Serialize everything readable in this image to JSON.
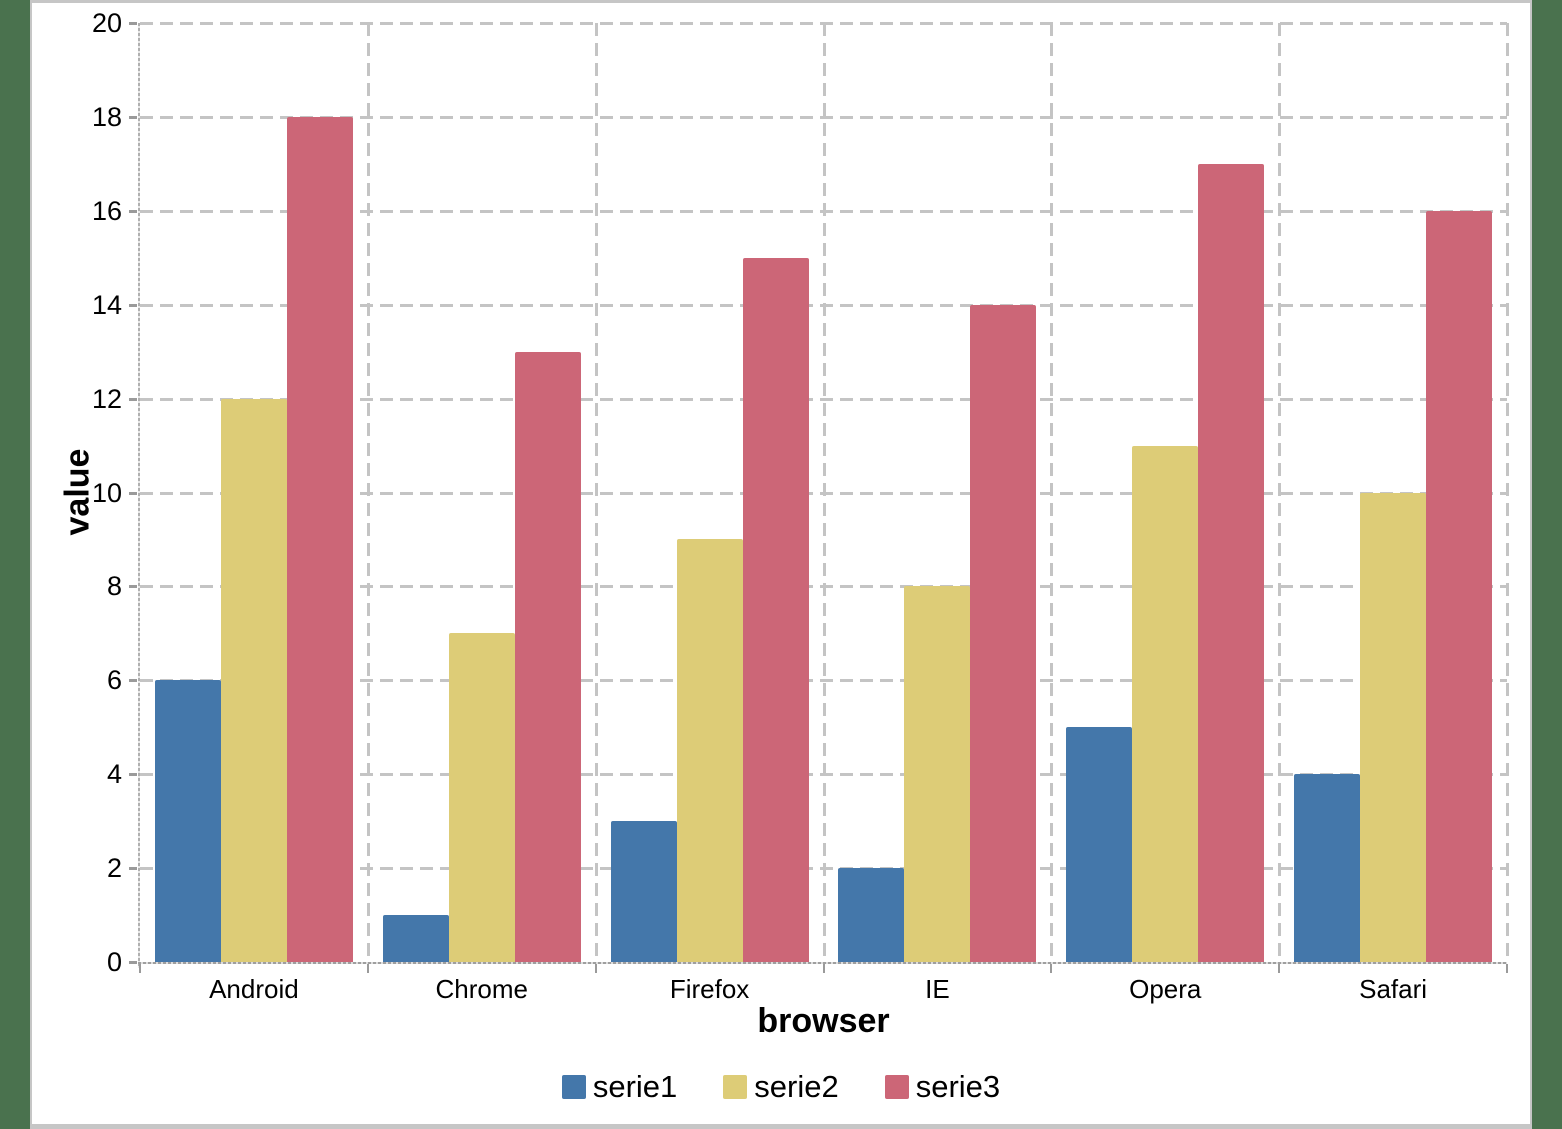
{
  "window": {
    "background_color": "#4a724e",
    "panel_background": "#ffffff",
    "panel_border_color": "#c6c6c6",
    "gridline_color": "#c4c4c4",
    "axis_color": "#9a9a9a",
    "text_color": "#000000"
  },
  "chart_data": {
    "type": "bar",
    "title": "",
    "xlabel": "browser",
    "ylabel": "value",
    "categories": [
      "Android",
      "Chrome",
      "Firefox",
      "IE",
      "Opera",
      "Safari"
    ],
    "series": [
      {
        "name": "serie1",
        "color": "#4477AA",
        "values": [
          6,
          1,
          3,
          2,
          5,
          4
        ]
      },
      {
        "name": "serie2",
        "color": "#DDCC77",
        "values": [
          12,
          7,
          9,
          8,
          11,
          10
        ]
      },
      {
        "name": "serie3",
        "color": "#CC6677",
        "values": [
          18,
          13,
          15,
          14,
          17,
          16
        ]
      }
    ],
    "ylim": [
      0,
      20
    ],
    "ytick_step": 2,
    "yticks": [
      "0",
      "2",
      "4",
      "6",
      "8",
      "10",
      "12",
      "14",
      "16",
      "18",
      "20"
    ],
    "grid": true,
    "grid_style": "dashed",
    "legend_position": "bottom"
  }
}
